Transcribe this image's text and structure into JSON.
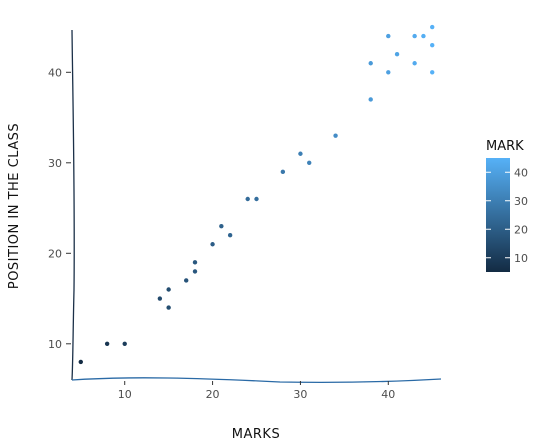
{
  "chart_data": {
    "type": "scatter",
    "title": "",
    "xlabel": "MARKS",
    "ylabel": "POSITION IN THE CLASS",
    "xlim": [
      4,
      46
    ],
    "ylim": [
      6,
      46
    ],
    "x_ticks": [
      10,
      20,
      30,
      40
    ],
    "y_ticks": [
      10,
      20,
      30,
      40
    ],
    "grid": false,
    "points": [
      {
        "x": 5,
        "y": 8
      },
      {
        "x": 8,
        "y": 10
      },
      {
        "x": 10,
        "y": 10
      },
      {
        "x": 14,
        "y": 15
      },
      {
        "x": 15,
        "y": 16
      },
      {
        "x": 15,
        "y": 14
      },
      {
        "x": 17,
        "y": 17
      },
      {
        "x": 18,
        "y": 18
      },
      {
        "x": 18,
        "y": 19
      },
      {
        "x": 20,
        "y": 21
      },
      {
        "x": 21,
        "y": 23
      },
      {
        "x": 22,
        "y": 22
      },
      {
        "x": 24,
        "y": 26
      },
      {
        "x": 25,
        "y": 26
      },
      {
        "x": 28,
        "y": 29
      },
      {
        "x": 30,
        "y": 31
      },
      {
        "x": 31,
        "y": 30
      },
      {
        "x": 34,
        "y": 33
      },
      {
        "x": 38,
        "y": 37
      },
      {
        "x": 38,
        "y": 41
      },
      {
        "x": 40,
        "y": 40
      },
      {
        "x": 40,
        "y": 44
      },
      {
        "x": 41,
        "y": 42
      },
      {
        "x": 43,
        "y": 41
      },
      {
        "x": 43,
        "y": 44
      },
      {
        "x": 44,
        "y": 44
      },
      {
        "x": 45,
        "y": 43
      },
      {
        "x": 45,
        "y": 45
      },
      {
        "x": 45,
        "y": 40
      }
    ],
    "color_by": "x",
    "legend": {
      "title": "MARK",
      "position": "right",
      "ticks": [
        10,
        20,
        30,
        40
      ],
      "range": [
        5,
        45
      ],
      "color_low": "#132b43",
      "color_high": "#56b1f7"
    }
  }
}
